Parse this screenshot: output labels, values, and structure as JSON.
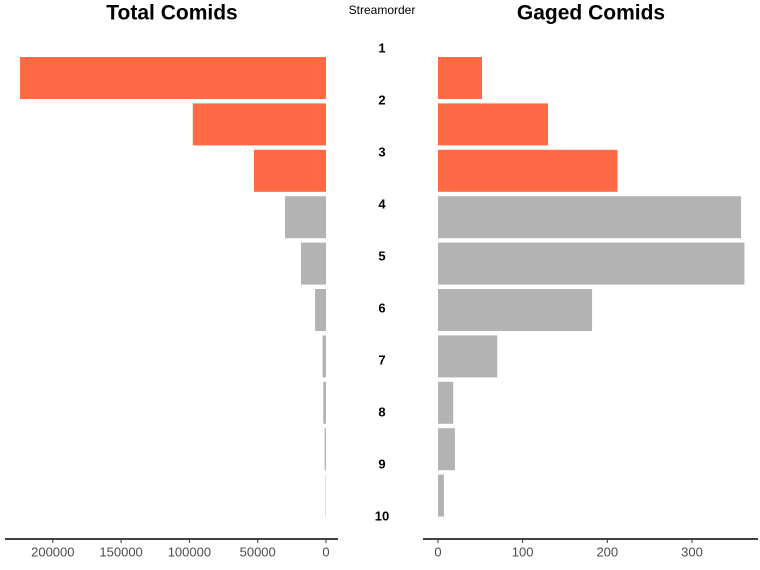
{
  "chart_data": [
    {
      "type": "bar",
      "orientation": "horizontal",
      "title": "Total Comids",
      "ylabel": "Streamorder",
      "categories": [
        "1",
        "2",
        "3",
        "4",
        "5",
        "6",
        "7",
        "8",
        "9",
        "10"
      ],
      "values": [
        224000,
        97500,
        52700,
        30000,
        18300,
        8000,
        2500,
        2000,
        1000,
        300
      ],
      "colors": [
        "#ff6a45",
        "#ff6a45",
        "#ff6a45",
        "#b3b3b3",
        "#b3b3b3",
        "#b3b3b3",
        "#b3b3b3",
        "#b3b3b3",
        "#b3b3b3",
        "#b3b3b3"
      ],
      "xlim": [
        0,
        235000
      ],
      "xticks": [
        0,
        50000,
        100000,
        150000,
        200000
      ],
      "reversed": true
    },
    {
      "type": "bar",
      "orientation": "horizontal",
      "title": "Gaged Comids",
      "values": [
        52,
        130,
        212,
        358,
        362,
        182,
        70,
        18,
        20,
        7
      ],
      "colors": [
        "#ff6a45",
        "#ff6a45",
        "#ff6a45",
        "#b3b3b3",
        "#b3b3b3",
        "#b3b3b3",
        "#b3b3b3",
        "#b3b3b3",
        "#b3b3b3",
        "#b3b3b3"
      ],
      "xlim": [
        0,
        378
      ],
      "xticks": [
        0,
        100,
        200,
        300
      ],
      "reversed": false
    }
  ]
}
